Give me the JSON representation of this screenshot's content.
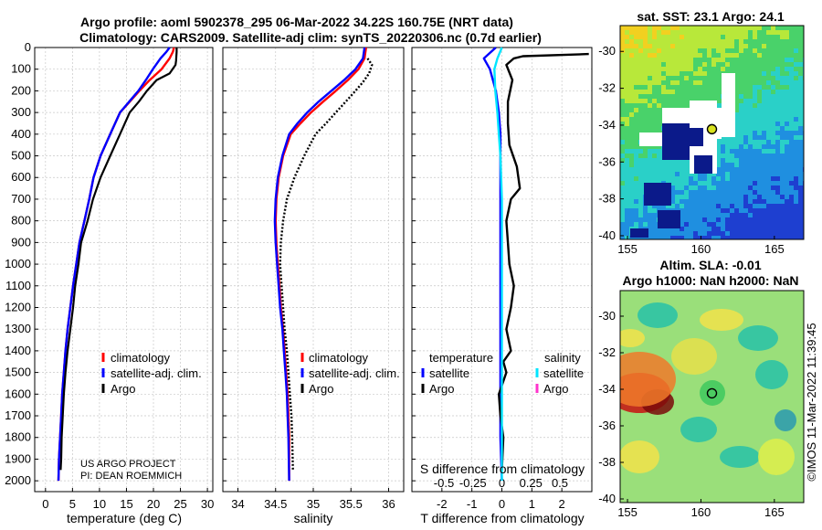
{
  "title": {
    "line1": "Argo profile: aoml 5902378_295 06-Mar-2022 34.22S 160.75E (NRT data)",
    "line2": "Climatology: CARS2009. Satellite-adj clim: synTS_20220306.nc (0.7d earlier)"
  },
  "colors": {
    "climatology": "#ff0000",
    "satellite": "#0000ff",
    "argo": "#000000",
    "sat_salinity": "#00e5ff",
    "argo_salinity": "#ff33cc"
  },
  "credit": {
    "line1": "US ARGO PROJECT",
    "line2": "PI: DEAN ROEMMICH"
  },
  "footer_stamp": "©IMOS 11-Mar-2022 11:39:45",
  "chart_data": [
    {
      "name": "temperature",
      "type": "line",
      "xlabel": "temperature (deg C)",
      "ylabel": "",
      "xlim": [
        -2,
        31
      ],
      "ylim": [
        2050,
        0
      ],
      "xticks": [
        0,
        5,
        10,
        15,
        20,
        25,
        30
      ],
      "yticks": [
        0,
        100,
        200,
        300,
        400,
        500,
        600,
        700,
        800,
        900,
        1000,
        1100,
        1200,
        1300,
        1400,
        1500,
        1600,
        1700,
        1800,
        1900,
        2000
      ],
      "legend": [
        "climatology",
        "satellite-adj. clim.",
        "Argo"
      ],
      "series": [
        {
          "name": "climatology",
          "x": [
            23.8,
            23.6,
            23.0,
            21.5,
            19.3,
            17.4,
            15.6,
            13.8,
            12.0,
            10.2,
            8.9,
            8.1,
            7.2,
            6.3,
            5.7,
            5.1,
            4.6,
            4.1,
            3.7,
            3.4,
            3.1,
            2.9,
            2.7,
            2.5,
            2.4
          ],
          "y": [
            0,
            20,
            50,
            100,
            150,
            200,
            250,
            300,
            400,
            500,
            600,
            700,
            800,
            900,
            1000,
            1100,
            1200,
            1300,
            1400,
            1500,
            1600,
            1700,
            1800,
            1900,
            2000
          ]
        },
        {
          "name": "satellite-adj. clim.",
          "x": [
            23.0,
            22.4,
            21.3,
            19.9,
            18.6,
            17.2,
            15.5,
            13.8,
            12.0,
            10.2,
            8.9,
            8.1,
            7.2,
            6.3,
            5.7,
            5.1,
            4.6,
            4.1,
            3.7,
            3.4,
            3.1,
            2.9,
            2.7,
            2.5,
            2.4
          ],
          "y": [
            0,
            20,
            50,
            100,
            150,
            200,
            250,
            300,
            400,
            500,
            600,
            700,
            800,
            900,
            1000,
            1100,
            1200,
            1300,
            1400,
            1500,
            1600,
            1700,
            1800,
            1900,
            2000
          ]
        },
        {
          "name": "Argo",
          "x": [
            24.3,
            24.3,
            24.2,
            24.1,
            23.0,
            20.6,
            18.8,
            17.3,
            15.6,
            13.8,
            12.0,
            10.2,
            8.8,
            7.8,
            6.6,
            6.1,
            5.5,
            5.1,
            4.6,
            4.1,
            3.7,
            3.4,
            3.2,
            3.0,
            2.9,
            2.8
          ],
          "y": [
            0,
            20,
            60,
            80,
            120,
            150,
            200,
            250,
            300,
            400,
            500,
            600,
            700,
            800,
            900,
            1000,
            1100,
            1200,
            1300,
            1400,
            1500,
            1600,
            1700,
            1800,
            1900,
            1950
          ]
        }
      ]
    },
    {
      "name": "salinity",
      "type": "line",
      "xlabel": "salinity",
      "xlim": [
        33.8,
        36.2
      ],
      "ylim": [
        2050,
        0
      ],
      "xticks": [
        34,
        34.5,
        35,
        35.5,
        36
      ],
      "legend": [
        "climatology",
        "satellite-adj. clim.",
        "Argo"
      ],
      "series": [
        {
          "name": "climatology",
          "x": [
            35.7,
            35.68,
            35.6,
            35.46,
            35.3,
            35.13,
            34.97,
            34.83,
            34.7,
            34.6,
            34.54,
            34.51,
            34.5,
            34.51,
            34.53,
            34.55,
            34.57,
            34.6,
            34.62,
            34.64,
            34.66,
            34.67,
            34.68,
            34.68
          ],
          "y": [
            0,
            50,
            100,
            150,
            200,
            250,
            300,
            350,
            400,
            500,
            600,
            700,
            800,
            900,
            1000,
            1100,
            1200,
            1300,
            1400,
            1500,
            1600,
            1700,
            1800,
            2000
          ]
        },
        {
          "name": "satellite-adj. clim.",
          "x": [
            35.68,
            35.66,
            35.56,
            35.41,
            35.24,
            35.07,
            34.92,
            34.79,
            34.68,
            34.59,
            34.53,
            34.5,
            34.49,
            34.5,
            34.52,
            34.54,
            34.56,
            34.59,
            34.61,
            34.63,
            34.65,
            34.66,
            34.67,
            34.68
          ],
          "y": [
            0,
            50,
            100,
            150,
            200,
            250,
            300,
            350,
            400,
            500,
            600,
            700,
            800,
            900,
            1000,
            1100,
            1200,
            1300,
            1400,
            1500,
            1600,
            1700,
            1800,
            2000
          ]
        },
        {
          "name": "Argo",
          "x": [
            35.72,
            35.78,
            35.74,
            35.66,
            35.56,
            35.43,
            35.3,
            35.17,
            35.03,
            34.88,
            34.75,
            34.65,
            34.6,
            34.57,
            34.56,
            34.58,
            34.6,
            34.62,
            34.65,
            34.67,
            34.69,
            34.71,
            34.72,
            34.73
          ],
          "y": [
            50,
            80,
            120,
            160,
            200,
            250,
            300,
            350,
            400,
            500,
            600,
            700,
            800,
            900,
            1000,
            1100,
            1200,
            1300,
            1400,
            1500,
            1600,
            1700,
            1800,
            1950
          ]
        }
      ]
    },
    {
      "name": "difference",
      "type": "line",
      "xlabel": "T difference from climatology",
      "secondary_xlabel": "S difference from climatology",
      "xlim": [
        -3,
        3
      ],
      "ylim": [
        2050,
        0
      ],
      "xticks": [
        -2,
        -1,
        0,
        1,
        2
      ],
      "secondary_xticks": [
        "-0.5",
        "-0.25",
        "0",
        "0.25",
        "0.5"
      ],
      "legend_headers": [
        "temperature",
        "salinity"
      ],
      "legend": [
        "satellite",
        "Argo",
        "satellite",
        "Argo"
      ],
      "series": [
        {
          "name": "temperature satellite",
          "x": [
            -0.2,
            -0.6,
            -0.4,
            -0.2,
            -0.1,
            -0.05,
            -0.05,
            -0.05,
            -0.05,
            -0.05,
            -0.05,
            -0.05,
            0
          ],
          "y": [
            0,
            50,
            100,
            200,
            300,
            400,
            600,
            800,
            1000,
            1200,
            1500,
            1800,
            2000
          ]
        },
        {
          "name": "temperature Argo",
          "x": [
            2.9,
            0.7,
            0.4,
            0.15,
            0.35,
            0.2,
            0.2,
            0.25,
            0.5,
            0.6,
            0.3,
            0.15,
            0.2,
            0.25,
            0.4,
            0.3,
            0.15,
            0.3,
            0.05,
            0.15,
            -0.1,
            -0.05,
            0.05,
            0
          ],
          "y": [
            30,
            40,
            50,
            80,
            150,
            250,
            350,
            450,
            550,
            650,
            700,
            800,
            900,
            1000,
            1100,
            1200,
            1300,
            1400,
            1450,
            1500,
            1600,
            1700,
            1800,
            1950
          ]
        },
        {
          "name": "salinity satellite",
          "x": [
            0.0,
            -0.15,
            -0.25,
            -0.22,
            -0.15,
            -0.1,
            -0.05,
            0,
            0,
            0,
            0,
            0
          ],
          "y": [
            0,
            50,
            100,
            200,
            300,
            400,
            500,
            700,
            1000,
            1400,
            1800,
            2000
          ]
        }
      ]
    },
    {
      "name": "sst_map",
      "type": "heatmap",
      "title": "sat. SST: 23.1 Argo: 24.1",
      "xticks": [
        155,
        160,
        165
      ],
      "yticks": [
        -30,
        -32,
        -34,
        -36,
        -38,
        -40
      ],
      "xlim": [
        154.5,
        167
      ],
      "ylim": [
        -40.2,
        -28.6
      ],
      "marker": [
        160.75,
        -34.22
      ]
    },
    {
      "name": "sla_map",
      "type": "heatmap",
      "title_line1": "Altim. SLA: -0.01",
      "title_line2": "Argo h1000: NaN h2000: NaN",
      "xticks": [
        155,
        160,
        165
      ],
      "yticks": [
        -30,
        -32,
        -34,
        -36,
        -38,
        -40
      ],
      "xlim": [
        154.5,
        167
      ],
      "ylim": [
        -40.2,
        -28.6
      ],
      "marker": [
        160.75,
        -34.22
      ]
    }
  ]
}
